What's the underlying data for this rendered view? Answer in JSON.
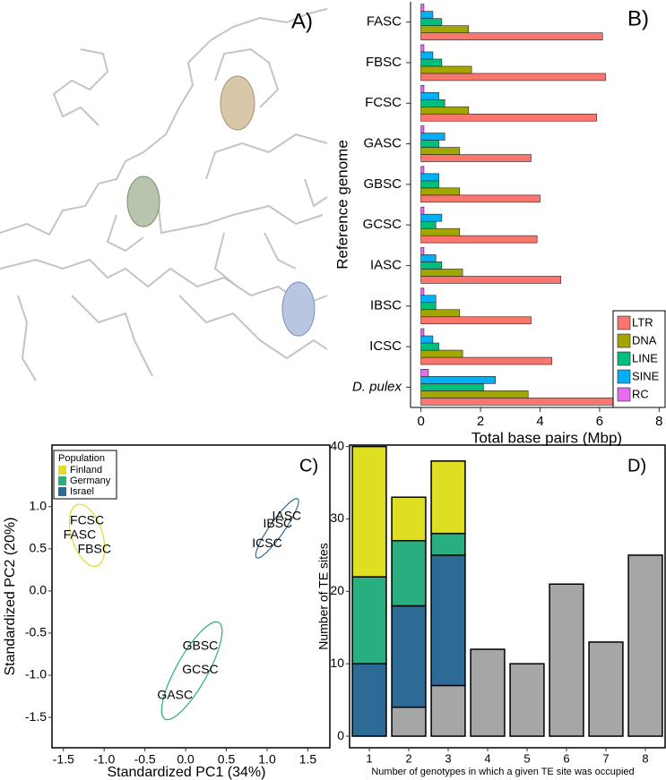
{
  "map": {
    "panel_label": "A)"
  },
  "chart_data": [
    {
      "type": "bar",
      "horizontal": true,
      "panel_label": "B)",
      "y_label": "Reference genome",
      "x_label": "Total base pairs (Mbp)",
      "categories": [
        "FASC",
        "FBSC",
        "FCSC",
        "GASC",
        "GBSC",
        "GCSC",
        "IASC",
        "IBSC",
        "ICSC",
        "D. pulex"
      ],
      "series": [
        {
          "name": "LTR",
          "color": "#f8766d",
          "values": [
            6.1,
            6.2,
            5.9,
            3.7,
            4.0,
            3.9,
            4.7,
            3.7,
            4.4,
            7.8
          ]
        },
        {
          "name": "DNA",
          "color": "#a3a500",
          "values": [
            1.6,
            1.7,
            1.6,
            1.3,
            1.3,
            1.3,
            1.4,
            1.3,
            1.4,
            3.6
          ]
        },
        {
          "name": "LINE",
          "color": "#00bf7d",
          "values": [
            0.7,
            0.7,
            0.8,
            0.6,
            0.6,
            0.5,
            0.7,
            0.5,
            0.6,
            2.1
          ]
        },
        {
          "name": "SINE",
          "color": "#00b0f6",
          "values": [
            0.4,
            0.4,
            0.6,
            0.8,
            0.6,
            0.7,
            0.5,
            0.5,
            0.4,
            2.5
          ]
        },
        {
          "name": "RC",
          "color": "#e76bf3",
          "values": [
            0.1,
            0.1,
            0.1,
            0.1,
            0.1,
            0.1,
            0.1,
            0.1,
            0.1,
            0.25
          ]
        }
      ],
      "xlim": [
        -0.35,
        8.2
      ],
      "xticks": [
        0,
        2,
        4,
        6,
        8
      ],
      "legend": "bottom-right"
    },
    {
      "type": "scatter",
      "panel_label": "C)",
      "x_label": "Standardized PC1 (34%)",
      "y_label": "Standardized PC2 (20%)",
      "legend_title": "Population",
      "series": [
        {
          "name": "Finland",
          "color": "#dede22",
          "x": [
            -1.21,
            -1.3,
            -1.12
          ],
          "y": [
            0.83,
            0.66,
            0.49
          ],
          "labels": [
            "FCSC",
            "FASC",
            "FBSC"
          ]
        },
        {
          "name": "Germany",
          "color": "#29af7f",
          "x": [
            0.18,
            0.18,
            -0.13
          ],
          "y": [
            -0.66,
            -0.94,
            -1.24
          ],
          "labels": [
            "GBSC",
            "GCSC",
            "GASC"
          ]
        },
        {
          "name": "Israel",
          "color": "#2e6a96",
          "x": [
            1.24,
            1.13,
            1.0
          ],
          "y": [
            0.88,
            0.79,
            0.56
          ],
          "labels": [
            "IASC",
            "IBSC",
            "ICSC"
          ]
        }
      ],
      "xlim": [
        -1.64,
        1.77
      ],
      "ylim": [
        -1.86,
        1.73
      ],
      "xticks": [
        -1.5,
        {
          "value": -1,
          "label": "-1.0"
        },
        -0.5,
        {
          "value": 0,
          "label": "0.0"
        },
        0.5,
        {
          "value": 1,
          "label": "1.0"
        },
        1.5
      ],
      "yticks": [
        {
          "value": 1,
          "label": "1.0"
        },
        0.5,
        {
          "value": 0,
          "label": "0.0"
        },
        -0.5,
        {
          "value": -1,
          "label": "-1.0"
        },
        -1.5
      ],
      "legend": "top-left"
    },
    {
      "type": "bar",
      "stacked": true,
      "panel_label": "D)",
      "y_label": "Number of TE sites",
      "x_label": "Number of genotypes in which a given TE site was occupied",
      "categories": [
        "1",
        "2",
        "3",
        "4",
        "5",
        "6",
        "7",
        "8"
      ],
      "series": [
        {
          "color": "#a6a6a6",
          "values": [
            null,
            4,
            7,
            12,
            10,
            21,
            13,
            25
          ]
        },
        {
          "color": "#2e6a96",
          "values": [
            10,
            14,
            18,
            null,
            null,
            null,
            null,
            null
          ]
        },
        {
          "color": "#29af7f",
          "values": [
            12,
            9,
            3,
            null,
            null,
            null,
            null,
            null
          ]
        },
        {
          "color": "#dede22",
          "values": [
            18,
            6,
            10,
            null,
            null,
            null,
            null,
            null
          ]
        }
      ],
      "ylim": [
        -1.6,
        40.2
      ],
      "yticks": [
        0,
        10,
        20,
        30,
        40
      ]
    }
  ]
}
